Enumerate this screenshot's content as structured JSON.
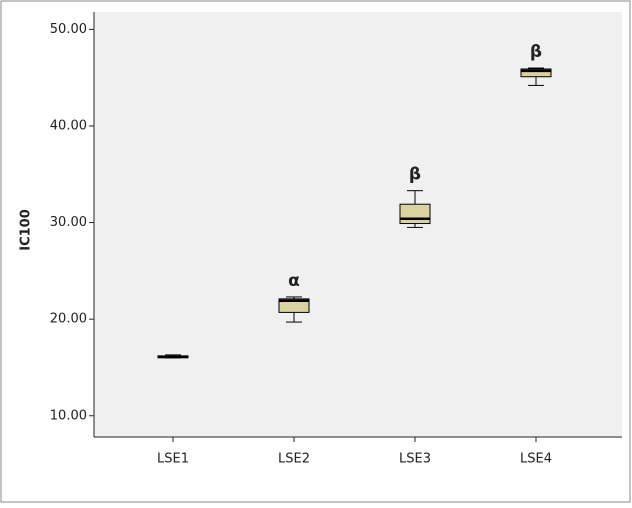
{
  "chart_data": {
    "type": "box",
    "y_label": "IC100",
    "categories": [
      "LSE1",
      "LSE2",
      "LSE3",
      "LSE4"
    ],
    "min": [
      16.0,
      19.7,
      29.5,
      44.2
    ],
    "q1": [
      16.0,
      20.7,
      29.9,
      45.1
    ],
    "median": [
      16.1,
      21.9,
      30.4,
      45.7
    ],
    "q3": [
      16.2,
      22.1,
      31.9,
      45.9
    ],
    "max": [
      16.3,
      22.3,
      33.3,
      46.0
    ],
    "annotations": [
      null,
      "α",
      "β",
      "β"
    ],
    "color": "#d8d3a0",
    "ylim": [
      7.8,
      51.8
    ],
    "yticks": [
      {
        "value": 10,
        "label": "10.00"
      },
      {
        "value": 20,
        "label": "20.00"
      },
      {
        "value": 30,
        "label": "30.00"
      },
      {
        "value": 40,
        "label": "40.00"
      },
      {
        "value": 50,
        "label": "50.00"
      }
    ]
  }
}
